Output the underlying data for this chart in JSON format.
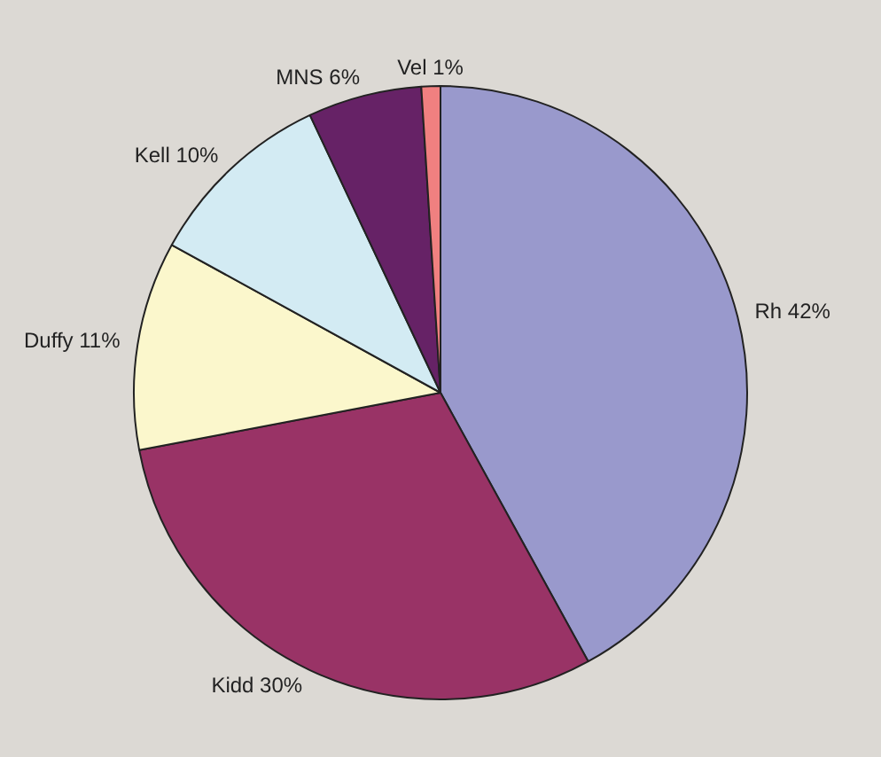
{
  "chart_data": {
    "type": "pie",
    "categories": [
      "Rh",
      "Kidd",
      "Duffy",
      "Kell",
      "MNS",
      "Vel"
    ],
    "values": [
      42,
      30,
      11,
      10,
      6,
      1
    ],
    "value_labels": [
      "42%",
      "30%",
      "11%",
      "10%",
      "6%",
      "1%"
    ],
    "colors": [
      "#9999cc",
      "#993366",
      "#fbf7cc",
      "#d3ebf3",
      "#662266",
      "#f08080"
    ],
    "legend": false
  }
}
